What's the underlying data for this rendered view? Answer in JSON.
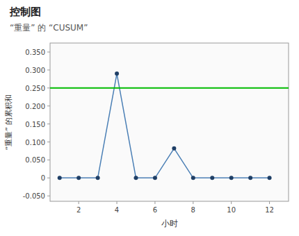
{
  "chart_data": {
    "type": "line",
    "title": "控制图",
    "subtitle": "“重量” 的 “CUSUM”",
    "x_label": "小时",
    "y_label": "“重量” 的累积和",
    "x": [
      1,
      2,
      3,
      4,
      5,
      6,
      7,
      8,
      9,
      10,
      11,
      12
    ],
    "values": [
      0.0,
      0.0,
      0.0,
      0.29,
      0.0,
      0.0,
      0.082,
      0.0,
      0.0,
      0.0,
      0.0,
      0.0
    ],
    "marker": "circle",
    "control_limit": {
      "value": 0.25,
      "color": "#00bb00"
    },
    "xlim": [
      0.5,
      13.0
    ],
    "ylim": [
      -0.065,
      0.375
    ],
    "xticks": [
      2,
      4,
      6,
      8,
      10,
      12
    ],
    "yticks": [
      {
        "value": -0.05,
        "label": "-0.050"
      },
      0,
      {
        "value": 0.05,
        "label": "0.050"
      },
      {
        "value": 0.1,
        "label": "0.100"
      },
      {
        "value": 0.15,
        "label": "0.150"
      },
      {
        "value": 0.2,
        "label": "0.200"
      },
      {
        "value": 0.25,
        "label": "0.250"
      },
      {
        "value": 0.3,
        "label": "0.300"
      },
      {
        "value": 0.35,
        "label": "0.350"
      }
    ],
    "grid": false
  }
}
